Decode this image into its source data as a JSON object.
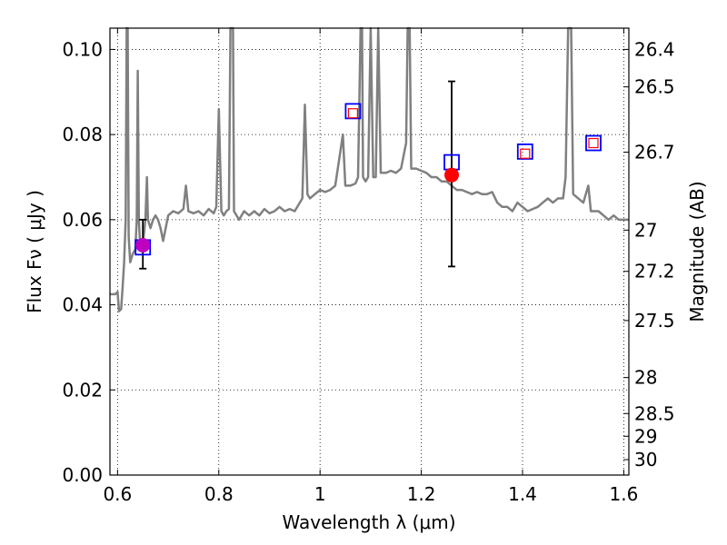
{
  "chart_data": {
    "type": "scatter",
    "xlabel": "Wavelength  λ (μm)",
    "ylabel": "Flux  Fν  ( μJy )",
    "y2label": "Magnitude (AB)",
    "xlim": [
      0.585,
      1.61
    ],
    "ylim": [
      0.0,
      0.105
    ],
    "grid": true,
    "x_ticks": [
      {
        "value": 0.6,
        "label": "0.6"
      },
      {
        "value": 0.8,
        "label": "0.8"
      },
      {
        "value": 1.0,
        "label": "1"
      },
      {
        "value": 1.2,
        "label": "1.2"
      },
      {
        "value": 1.4,
        "label": "1.4"
      },
      {
        "value": 1.6,
        "label": "1.6"
      }
    ],
    "y_ticks": [
      {
        "value": 0.0,
        "label": "0.00"
      },
      {
        "value": 0.02,
        "label": "0.02"
      },
      {
        "value": 0.04,
        "label": "0.04"
      },
      {
        "value": 0.06,
        "label": "0.06"
      },
      {
        "value": 0.08,
        "label": "0.08"
      },
      {
        "value": 0.1,
        "label": "0.10"
      }
    ],
    "mag_ticks": [
      {
        "value": 26.4,
        "label": "26.4"
      },
      {
        "value": 26.5,
        "label": "26.5"
      },
      {
        "value": 26.7,
        "label": "26.7"
      },
      {
        "value": 27.0,
        "label": "27"
      },
      {
        "value": 27.2,
        "label": "27.2"
      },
      {
        "value": 27.5,
        "label": "27.5"
      },
      {
        "value": 28.0,
        "label": "28"
      },
      {
        "value": 28.5,
        "label": "28.5"
      },
      {
        "value": 29.0,
        "label": "29"
      },
      {
        "value": 30.0,
        "label": "30"
      }
    ],
    "spectrum": {
      "color": "#808080",
      "points": [
        [
          0.585,
          0.0425
        ],
        [
          0.595,
          0.0425
        ],
        [
          0.6,
          0.043
        ],
        [
          0.603,
          0.0385
        ],
        [
          0.607,
          0.039
        ],
        [
          0.61,
          0.044
        ],
        [
          0.613,
          0.05
        ],
        [
          0.616,
          0.06
        ],
        [
          0.618,
          0.106
        ],
        [
          0.62,
          0.106
        ],
        [
          0.622,
          0.056
        ],
        [
          0.625,
          0.05
        ],
        [
          0.63,
          0.052
        ],
        [
          0.635,
          0.053
        ],
        [
          0.638,
          0.06
        ],
        [
          0.64,
          0.095
        ],
        [
          0.642,
          0.06
        ],
        [
          0.645,
          0.053
        ],
        [
          0.65,
          0.054
        ],
        [
          0.655,
          0.06
        ],
        [
          0.658,
          0.07
        ],
        [
          0.66,
          0.06
        ],
        [
          0.665,
          0.058
        ],
        [
          0.67,
          0.06
        ],
        [
          0.675,
          0.061
        ],
        [
          0.68,
          0.06
        ],
        [
          0.685,
          0.058
        ],
        [
          0.69,
          0.055
        ],
        [
          0.695,
          0.058
        ],
        [
          0.7,
          0.061
        ],
        [
          0.71,
          0.062
        ],
        [
          0.72,
          0.0615
        ],
        [
          0.73,
          0.0625
        ],
        [
          0.735,
          0.068
        ],
        [
          0.74,
          0.062
        ],
        [
          0.75,
          0.0615
        ],
        [
          0.76,
          0.062
        ],
        [
          0.77,
          0.061
        ],
        [
          0.78,
          0.0625
        ],
        [
          0.79,
          0.0615
        ],
        [
          0.795,
          0.063
        ],
        [
          0.8,
          0.086
        ],
        [
          0.805,
          0.062
        ],
        [
          0.81,
          0.061
        ],
        [
          0.815,
          0.062
        ],
        [
          0.82,
          0.0625
        ],
        [
          0.823,
          0.106
        ],
        [
          0.828,
          0.106
        ],
        [
          0.83,
          0.062
        ],
        [
          0.84,
          0.06
        ],
        [
          0.85,
          0.062
        ],
        [
          0.86,
          0.061
        ],
        [
          0.87,
          0.062
        ],
        [
          0.88,
          0.061
        ],
        [
          0.89,
          0.0625
        ],
        [
          0.9,
          0.0615
        ],
        [
          0.91,
          0.062
        ],
        [
          0.92,
          0.063
        ],
        [
          0.93,
          0.062
        ],
        [
          0.94,
          0.0625
        ],
        [
          0.95,
          0.062
        ],
        [
          0.96,
          0.064
        ],
        [
          0.965,
          0.065
        ],
        [
          0.97,
          0.087
        ],
        [
          0.975,
          0.066
        ],
        [
          0.98,
          0.065
        ],
        [
          0.99,
          0.066
        ],
        [
          1.0,
          0.067
        ],
        [
          1.01,
          0.0665
        ],
        [
          1.02,
          0.067
        ],
        [
          1.03,
          0.068
        ],
        [
          1.04,
          0.076
        ],
        [
          1.045,
          0.08
        ],
        [
          1.05,
          0.068
        ],
        [
          1.06,
          0.068
        ],
        [
          1.07,
          0.0685
        ],
        [
          1.075,
          0.07
        ],
        [
          1.08,
          0.106
        ],
        [
          1.083,
          0.106
        ],
        [
          1.085,
          0.07
        ],
        [
          1.09,
          0.069
        ],
        [
          1.095,
          0.07
        ],
        [
          1.1,
          0.106
        ],
        [
          1.105,
          0.07
        ],
        [
          1.11,
          0.07
        ],
        [
          1.115,
          0.106
        ],
        [
          1.12,
          0.071
        ],
        [
          1.13,
          0.071
        ],
        [
          1.14,
          0.0715
        ],
        [
          1.15,
          0.071
        ],
        [
          1.16,
          0.072
        ],
        [
          1.17,
          0.078
        ],
        [
          1.173,
          0.106
        ],
        [
          1.177,
          0.106
        ],
        [
          1.18,
          0.072
        ],
        [
          1.19,
          0.072
        ],
        [
          1.2,
          0.0715
        ],
        [
          1.21,
          0.071
        ],
        [
          1.22,
          0.07
        ],
        [
          1.23,
          0.07
        ],
        [
          1.24,
          0.069
        ],
        [
          1.25,
          0.069
        ],
        [
          1.26,
          0.068
        ],
        [
          1.27,
          0.067
        ],
        [
          1.28,
          0.067
        ],
        [
          1.29,
          0.0665
        ],
        [
          1.3,
          0.066
        ],
        [
          1.31,
          0.0665
        ],
        [
          1.32,
          0.066
        ],
        [
          1.33,
          0.066
        ],
        [
          1.34,
          0.0665
        ],
        [
          1.35,
          0.064
        ],
        [
          1.36,
          0.063
        ],
        [
          1.37,
          0.063
        ],
        [
          1.38,
          0.062
        ],
        [
          1.39,
          0.064
        ],
        [
          1.4,
          0.063
        ],
        [
          1.41,
          0.062
        ],
        [
          1.42,
          0.0625
        ],
        [
          1.43,
          0.063
        ],
        [
          1.44,
          0.064
        ],
        [
          1.45,
          0.065
        ],
        [
          1.46,
          0.064
        ],
        [
          1.47,
          0.065
        ],
        [
          1.48,
          0.065
        ],
        [
          1.485,
          0.07
        ],
        [
          1.49,
          0.106
        ],
        [
          1.496,
          0.106
        ],
        [
          1.5,
          0.066
        ],
        [
          1.51,
          0.065
        ],
        [
          1.52,
          0.064
        ],
        [
          1.53,
          0.068
        ],
        [
          1.535,
          0.062
        ],
        [
          1.54,
          0.062
        ],
        [
          1.55,
          0.062
        ],
        [
          1.56,
          0.061
        ],
        [
          1.57,
          0.06
        ],
        [
          1.58,
          0.061
        ],
        [
          1.59,
          0.06
        ],
        [
          1.6,
          0.06
        ],
        [
          1.61,
          0.06
        ]
      ]
    },
    "observed": [
      {
        "x": 0.65,
        "y": 0.054,
        "yerr_low": 0.0485,
        "yerr_high": 0.06,
        "color": "#bf00bf"
      },
      {
        "x": 1.26,
        "y": 0.0705,
        "yerr_low": 0.049,
        "yerr_high": 0.0925,
        "color": "#ff0000"
      }
    ],
    "model_blue_squares": [
      {
        "x": 0.65,
        "y": 0.0535
      },
      {
        "x": 1.065,
        "y": 0.0855
      },
      {
        "x": 1.26,
        "y": 0.0735
      },
      {
        "x": 1.405,
        "y": 0.076
      },
      {
        "x": 1.54,
        "y": 0.078
      }
    ],
    "model_red_squares": [
      {
        "x": 1.065,
        "y": 0.085
      },
      {
        "x": 1.405,
        "y": 0.0755
      },
      {
        "x": 1.54,
        "y": 0.078
      }
    ],
    "colors": {
      "blue_square": "#0000ff",
      "red_square": "#ff0000",
      "errorbar": "#000000",
      "grid": "#000000"
    }
  }
}
